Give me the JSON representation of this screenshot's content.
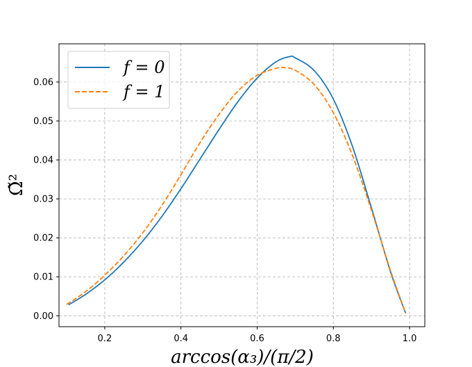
{
  "chart_data": {
    "type": "line",
    "xlabel": "arccos(α₃)/(π/2)",
    "ylabel": "Ω̃²",
    "xlim": [
      0.08,
      1.04
    ],
    "ylim": [
      -0.0028,
      0.0698
    ],
    "x_ticks": [
      0.2,
      0.4,
      0.6,
      0.8,
      1.0
    ],
    "x_tick_labels": [
      "0.2",
      "0.4",
      "0.6",
      "0.8",
      "1.0"
    ],
    "y_ticks": [
      0.0,
      0.01,
      0.02,
      0.03,
      0.04,
      0.05,
      0.06
    ],
    "y_tick_labels": [
      "0.00",
      "0.01",
      "0.02",
      "0.03",
      "0.04",
      "0.05",
      "0.06"
    ],
    "grid": true,
    "legend_position": "upper-left",
    "series": [
      {
        "name": "f = 0",
        "color": "#1f77b4",
        "style": "solid",
        "x": [
          0.105,
          0.15,
          0.2,
          0.25,
          0.3,
          0.35,
          0.4,
          0.45,
          0.5,
          0.55,
          0.6,
          0.65,
          0.685,
          0.7,
          0.75,
          0.8,
          0.85,
          0.9,
          0.95,
          0.99
        ],
        "y": [
          0.0028,
          0.0055,
          0.0092,
          0.0138,
          0.0192,
          0.0255,
          0.0326,
          0.0402,
          0.0478,
          0.055,
          0.061,
          0.0652,
          0.0665,
          0.0662,
          0.0629,
          0.0556,
          0.0435,
          0.0277,
          0.0113,
          0.0006
        ]
      },
      {
        "name": "f = 1",
        "color": "#ff7f0e",
        "style": "dashed",
        "x": [
          0.1,
          0.15,
          0.2,
          0.25,
          0.3,
          0.35,
          0.4,
          0.45,
          0.5,
          0.55,
          0.6,
          0.65,
          0.67,
          0.7,
          0.75,
          0.8,
          0.85,
          0.9,
          0.95,
          0.99
        ],
        "y": [
          0.0029,
          0.0062,
          0.0104,
          0.0154,
          0.0213,
          0.0283,
          0.0362,
          0.0444,
          0.0517,
          0.0577,
          0.0617,
          0.0635,
          0.0637,
          0.063,
          0.0593,
          0.0521,
          0.0412,
          0.0271,
          0.0116,
          0.0006
        ]
      }
    ]
  },
  "legend": {
    "entries": [
      "f = 0",
      "f = 1"
    ]
  }
}
